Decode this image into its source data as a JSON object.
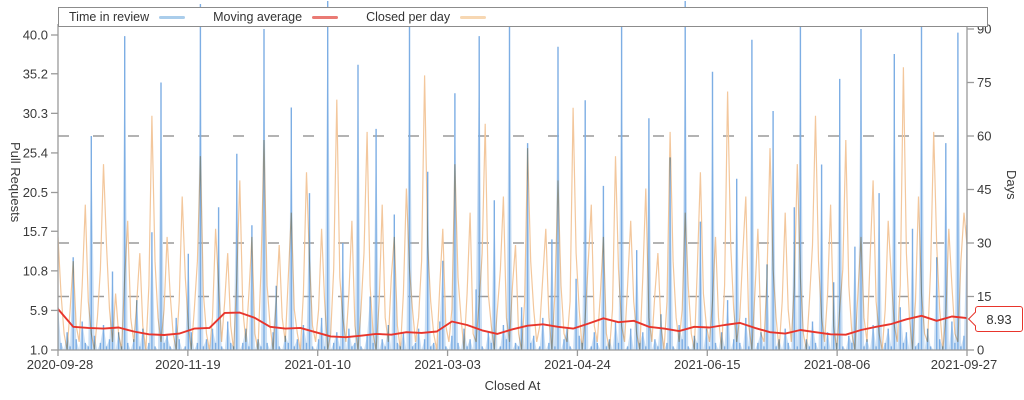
{
  "chart_data": {
    "type": "mixed: bar/area series with two overlay lines, dual y-axes",
    "x_axis": {
      "title": "Closed At",
      "tick_labels": [
        "2020-09-28",
        "2020-11-19",
        "2021-01-10",
        "2021-03-03",
        "2021-04-24",
        "2021-06-15",
        "2021-08-06",
        "2021-09-27"
      ],
      "range": [
        "2020-09-28",
        "2021-09-27"
      ]
    },
    "y_left": {
      "title": "Pull Requests",
      "tick_labels": [
        "40.0",
        "35.2",
        "30.3",
        "25.4",
        "20.5",
        "15.7",
        "10.8",
        "5.9",
        "1.0"
      ],
      "min": 1.0,
      "max": 40.0
    },
    "y_right": {
      "title": "Days",
      "tick_labels": [
        "90",
        "75",
        "60",
        "45",
        "30",
        "15",
        "0"
      ],
      "min": 0,
      "max": 90
    },
    "reference_lines_days": [
      15,
      30,
      60
    ],
    "annotation": {
      "label": "8.93",
      "value_days": 8.93,
      "series": "Moving average",
      "color": "#e8352c"
    },
    "grid": "horizontal dashed reference lines only",
    "legend_position": "top, boxed, spans plot width",
    "series": [
      {
        "name": "Time in review",
        "type": "bars+area",
        "axis": "right",
        "unit": "days",
        "color": "#7daee4",
        "fill": "rgba(125,174,228,0.40)",
        "legend_color": "#aacdeb",
        "values": [
          12,
          2,
          0,
          5,
          1,
          26,
          3,
          0,
          8,
          2,
          1,
          60,
          4,
          0,
          2,
          7,
          1,
          3,
          22,
          0,
          5,
          1,
          88,
          2,
          0,
          3,
          14,
          1,
          6,
          0,
          2,
          33,
          1,
          0,
          75,
          2,
          4,
          1,
          0,
          9,
          3,
          0,
          1,
          27,
          5,
          0,
          2,
          97,
          1,
          3,
          0,
          6,
          2,
          40,
          1,
          0,
          8,
          2,
          1,
          55,
          0,
          2,
          6,
          1,
          35,
          0,
          3,
          1,
          90,
          2,
          0,
          5,
          18,
          1,
          0,
          4,
          2,
          68,
          1,
          3,
          0,
          7,
          2,
          44,
          1,
          0,
          3,
          9,
          1,
          99,
          0,
          2,
          5,
          1,
          30,
          0,
          6,
          1,
          2,
          80,
          1,
          0,
          4,
          15,
          2,
          62,
          0,
          3,
          1,
          7,
          0,
          38,
          2,
          1,
          5,
          0,
          93,
          1,
          2,
          6,
          0,
          3,
          50,
          1,
          2,
          0,
          8,
          25,
          1,
          0,
          4,
          72,
          2,
          0,
          6,
          1,
          3,
          0,
          17,
          88,
          1,
          0,
          5,
          2,
          42,
          0,
          1,
          7,
          3,
          96,
          0,
          2,
          1,
          12,
          0,
          58,
          2,
          4,
          0,
          1,
          9,
          0,
          2,
          31,
          1,
          85,
          0,
          3,
          6,
          1,
          0,
          20,
          4,
          2,
          70,
          0,
          1,
          5,
          2,
          0,
          46,
          1,
          3,
          0,
          8,
          2,
          92,
          0,
          1,
          6,
          0,
          28,
          2,
          5,
          1,
          65,
          0,
          3,
          1,
          10,
          0,
          2,
          54,
          1,
          0,
          7,
          3,
          98,
          1,
          0,
          4,
          2,
          36,
          0,
          6,
          1,
          78,
          2,
          0,
          5,
          1,
          14,
          0,
          3,
          48,
          2,
          0,
          9,
          1,
          87,
          0,
          2,
          5,
          1,
          24,
          0,
          67,
          1,
          3,
          0,
          6,
          2,
          0,
          40,
          1,
          94,
          0,
          3,
          1,
          8,
          2,
          0,
          52,
          1,
          5,
          0,
          19,
          2,
          76,
          1,
          0,
          4,
          2,
          29,
          0,
          90,
          1,
          3,
          0,
          7,
          1,
          44,
          0,
          2,
          6,
          1,
          83,
          0,
          12,
          2,
          5,
          0,
          34,
          1,
          2,
          96,
          0,
          6,
          1,
          0,
          26,
          3,
          1,
          58,
          0,
          8,
          2,
          89,
          1,
          4,
          35
        ]
      },
      {
        "name": "Moving average",
        "type": "line",
        "axis": "right",
        "unit": "days",
        "color": "#e8352c",
        "legend_color": "#ea7a74",
        "end_value": 8.93,
        "values": [
          11.5,
          6.5,
          6.2,
          6.0,
          6.3,
          5.2,
          4.4,
          4.2,
          4.6,
          6.0,
          6.2,
          10.4,
          10.5,
          9.0,
          6.5,
          6.0,
          6.2,
          5.0,
          3.8,
          3.6,
          4.0,
          4.5,
          4.3,
          5.0,
          4.8,
          5.2,
          8.0,
          7.0,
          5.5,
          4.5,
          5.8,
          6.8,
          7.2,
          6.5,
          6.0,
          7.4,
          8.9,
          7.8,
          8.2,
          6.5,
          6.0,
          5.3,
          6.5,
          6.3,
          7.0,
          7.6,
          6.2,
          5.0,
          4.6,
          5.6,
          5.0,
          4.4,
          4.3,
          5.6,
          6.5,
          7.3,
          8.6,
          9.6,
          8.2,
          9.4,
          8.93
        ]
      },
      {
        "name": "Closed per day",
        "type": "line",
        "axis": "left",
        "unit": "pull requests",
        "color": "#f3c79c",
        "legend_color": "#f7d7b2",
        "values": [
          15,
          8,
          3,
          1,
          6,
          12,
          4,
          2,
          9,
          19,
          7,
          3,
          1,
          5,
          11,
          24,
          14,
          6,
          2,
          8,
          3,
          1,
          10,
          17,
          5,
          2,
          7,
          13,
          4,
          1,
          9,
          30,
          12,
          5,
          2,
          6,
          15,
          8,
          3,
          1,
          7,
          20,
          10,
          4,
          1,
          6,
          12,
          25,
          8,
          3,
          1,
          5,
          16,
          9,
          2,
          7,
          13,
          4,
          1,
          10,
          22,
          6,
          2,
          8,
          15,
          3,
          1,
          11,
          27,
          9,
          4,
          1,
          7,
          14,
          5,
          2,
          10,
          18,
          6,
          3,
          1,
          8,
          23,
          12,
          4,
          2,
          6,
          16,
          7,
          1,
          3,
          11,
          32,
          10,
          5,
          2,
          8,
          17,
          4,
          1,
          6,
          13,
          28,
          9,
          3,
          1,
          7,
          19,
          5,
          2,
          10,
          15,
          4,
          1,
          8,
          21,
          11,
          6,
          2,
          5,
          12,
          35,
          14,
          7,
          3,
          1,
          9,
          16,
          4,
          2,
          6,
          24,
          10,
          5,
          1,
          8,
          18,
          3,
          2,
          7,
          13,
          29,
          8,
          4,
          1,
          6,
          11,
          20,
          5,
          2,
          9,
          14,
          3,
          1,
          7,
          26,
          12,
          6,
          2,
          4,
          10,
          16,
          5,
          1,
          8,
          22,
          9,
          3,
          2,
          7,
          31,
          13,
          6,
          1,
          5,
          12,
          19,
          4,
          2,
          8,
          15,
          3,
          1,
          6,
          25,
          11,
          4,
          2,
          9,
          17,
          7,
          3,
          1,
          10,
          21,
          5,
          2,
          8,
          13,
          4,
          1,
          7,
          28,
          12,
          5,
          2,
          6,
          18,
          9,
          3,
          1,
          11,
          23,
          8,
          4,
          2,
          7,
          15,
          5,
          1,
          9,
          33,
          14,
          6,
          2,
          5,
          13,
          20,
          4,
          1,
          8,
          16,
          3,
          2,
          10,
          26,
          11,
          5,
          1,
          7,
          18,
          6,
          2,
          9,
          24,
          10,
          3,
          1,
          7,
          14,
          30,
          12,
          5,
          2,
          8,
          19,
          4,
          1,
          6,
          11,
          27,
          9,
          3,
          1,
          8,
          15,
          5,
          2,
          12,
          22,
          7,
          3,
          1,
          6,
          17,
          10,
          4,
          2,
          9,
          36,
          13,
          5,
          1,
          7,
          20,
          8,
          3,
          2,
          11,
          28,
          14,
          6,
          1,
          5,
          16,
          9,
          3,
          2,
          12,
          18,
          14
        ]
      }
    ]
  },
  "colors": {
    "axis": "#9a9a9a",
    "text": "#3a3a3a",
    "legend_border": "#8c8c8c",
    "reference_line": "#9a9a9a",
    "background": "#ffffff"
  }
}
